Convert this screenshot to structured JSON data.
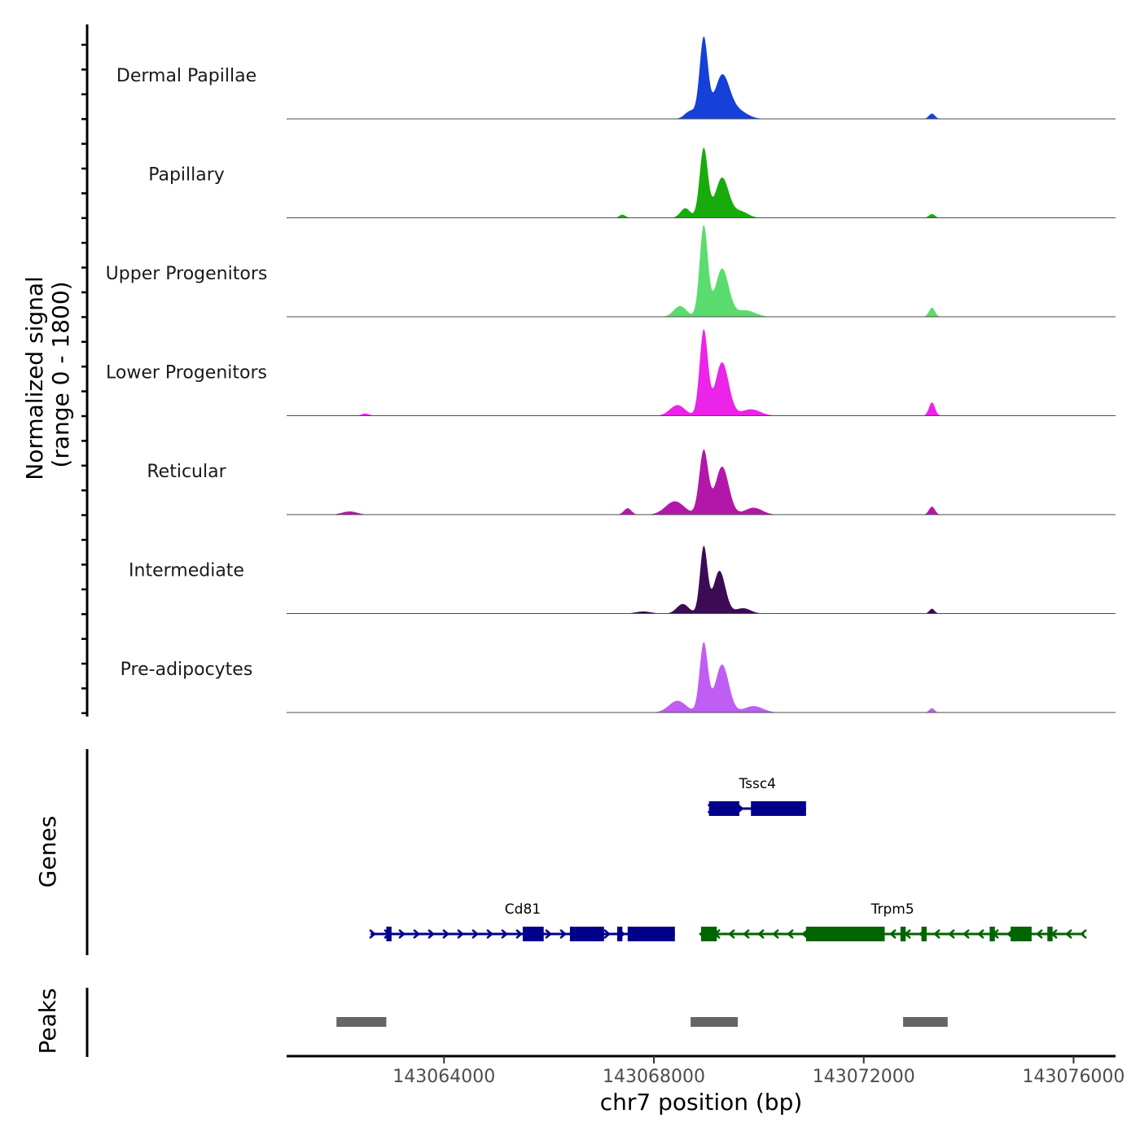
{
  "chart_data": {
    "type": "area",
    "chromosome": "chr7",
    "xlim": [
      143061000,
      143076800
    ],
    "x_ticks": [
      143064000,
      143068000,
      143072000,
      143076000
    ],
    "x_tick_labels": [
      "143064000",
      "143068000",
      "143072000",
      "143076000"
    ],
    "xlabel": "chr7 position (bp)",
    "ylabel": [
      "Normalized signal",
      "(range 0 - 1800)"
    ],
    "ylim": [
      0,
      1800
    ],
    "series": [
      {
        "name": "Dermal Papillae",
        "color": "#1540d9",
        "peaks": [
          {
            "pos": 143068950,
            "height": 1500,
            "width": 110
          },
          {
            "pos": 143069300,
            "height": 800,
            "width": 200
          },
          {
            "pos": 143068700,
            "height": 150,
            "width": 150
          },
          {
            "pos": 143069600,
            "height": 150,
            "width": 250
          },
          {
            "pos": 143073300,
            "height": 100,
            "width": 80
          }
        ]
      },
      {
        "name": "Papillary",
        "color": "#17ab0b",
        "peaks": [
          {
            "pos": 143068950,
            "height": 1300,
            "width": 110
          },
          {
            "pos": 143069300,
            "height": 750,
            "width": 180
          },
          {
            "pos": 143068600,
            "height": 180,
            "width": 130
          },
          {
            "pos": 143069650,
            "height": 120,
            "width": 200
          },
          {
            "pos": 143067400,
            "height": 60,
            "width": 80
          },
          {
            "pos": 143073300,
            "height": 70,
            "width": 80
          }
        ]
      },
      {
        "name": "Upper Progenitors",
        "color": "#5bdc6e",
        "peaks": [
          {
            "pos": 143068950,
            "height": 1700,
            "width": 110
          },
          {
            "pos": 143069300,
            "height": 900,
            "width": 180
          },
          {
            "pos": 143068500,
            "height": 200,
            "width": 170
          },
          {
            "pos": 143069750,
            "height": 120,
            "width": 250
          },
          {
            "pos": 143073300,
            "height": 170,
            "width": 80
          }
        ]
      },
      {
        "name": "Lower Progenitors",
        "color": "#ec23e8",
        "peaks": [
          {
            "pos": 143068950,
            "height": 1600,
            "width": 110
          },
          {
            "pos": 143069300,
            "height": 1000,
            "width": 180
          },
          {
            "pos": 143068450,
            "height": 200,
            "width": 200
          },
          {
            "pos": 143069850,
            "height": 120,
            "width": 250
          },
          {
            "pos": 143073300,
            "height": 250,
            "width": 80
          },
          {
            "pos": 143062500,
            "height": 40,
            "width": 100
          }
        ]
      },
      {
        "name": "Reticular",
        "color": "#b317aa",
        "peaks": [
          {
            "pos": 143068950,
            "height": 1200,
            "width": 120
          },
          {
            "pos": 143069300,
            "height": 900,
            "width": 180
          },
          {
            "pos": 143068400,
            "height": 250,
            "width": 250
          },
          {
            "pos": 143067500,
            "height": 120,
            "width": 100
          },
          {
            "pos": 143069900,
            "height": 130,
            "width": 230
          },
          {
            "pos": 143073300,
            "height": 150,
            "width": 80
          },
          {
            "pos": 143062200,
            "height": 60,
            "width": 200
          }
        ]
      },
      {
        "name": "Intermediate",
        "color": "#3c0b55",
        "peaks": [
          {
            "pos": 143068950,
            "height": 1250,
            "width": 100
          },
          {
            "pos": 143069250,
            "height": 800,
            "width": 160
          },
          {
            "pos": 143068550,
            "height": 180,
            "width": 160
          },
          {
            "pos": 143069700,
            "height": 100,
            "width": 200
          },
          {
            "pos": 143067800,
            "height": 40,
            "width": 200
          },
          {
            "pos": 143073300,
            "height": 90,
            "width": 70
          }
        ]
      },
      {
        "name": "Pre-adipocytes",
        "color": "#c05df4",
        "peaks": [
          {
            "pos": 143068950,
            "height": 1300,
            "width": 110
          },
          {
            "pos": 143069300,
            "height": 900,
            "width": 180
          },
          {
            "pos": 143068450,
            "height": 220,
            "width": 230
          },
          {
            "pos": 143069900,
            "height": 120,
            "width": 250
          },
          {
            "pos": 143073300,
            "height": 80,
            "width": 70
          }
        ]
      }
    ],
    "genes_label": "Genes",
    "genes": [
      {
        "name": "Tssc4",
        "strand": "+",
        "start": 143069050,
        "end": 143070900,
        "row": 0,
        "color": "#00008b",
        "exons": [
          [
            143069050,
            143069630
          ],
          [
            143069850,
            143070900
          ]
        ]
      },
      {
        "name": "Cd81",
        "strand": "+",
        "start": 143062600,
        "end": 143068400,
        "row": 1,
        "color": "#00008b",
        "exons": [
          [
            143062900,
            143063000
          ],
          [
            143065500,
            143065900
          ],
          [
            143066400,
            143066500
          ],
          [
            143066500,
            143067050
          ],
          [
            143067300,
            143067400
          ],
          [
            143067500,
            143068400
          ]
        ]
      },
      {
        "name": "Trpm5",
        "strand": "-",
        "start": 143068900,
        "end": 143076200,
        "row": 1,
        "color": "#006400",
        "exons": [
          [
            143068900,
            143069200
          ],
          [
            143070900,
            143072400
          ],
          [
            143072700,
            143072800
          ],
          [
            143073100,
            143073200
          ],
          [
            143074400,
            143074500
          ],
          [
            143074800,
            143075200
          ],
          [
            143075500,
            143075600
          ]
        ]
      }
    ],
    "peaks_label": "Peaks",
    "peaks_color": "#666666",
    "peaks": [
      {
        "start": 143061950,
        "end": 143062900
      },
      {
        "start": 143068700,
        "end": 143069600
      },
      {
        "start": 143072750,
        "end": 143073600
      }
    ]
  }
}
